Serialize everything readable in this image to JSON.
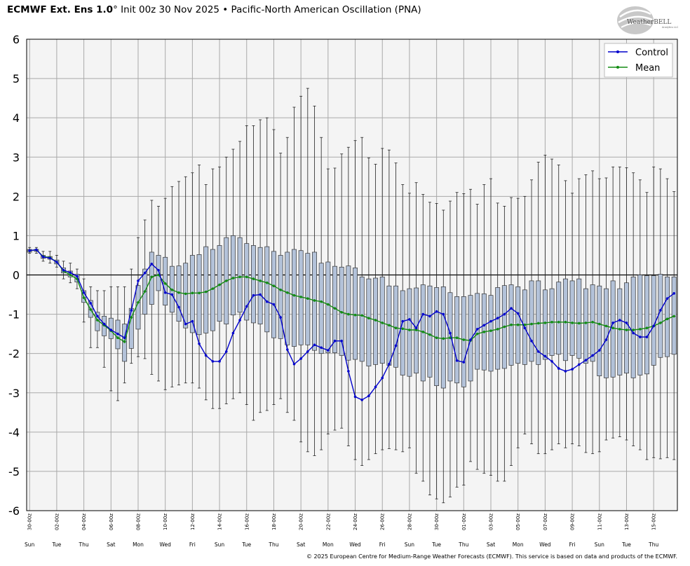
{
  "header": {
    "title_bold": "ECMWF Ext. Ens 1.0",
    "title_rest": "° Init 00z 30 Nov 2025 • Pacific-North American Oscillation (PNA)"
  },
  "logo": {
    "text": "WeatherBELL",
    "subtext": "Analytics LLC"
  },
  "footer": {
    "copyright": "© 2025 European Centre for Medium-Range Weather Forecasts (ECMWF). This service is based on data and products of the ECMWF."
  },
  "colors": {
    "control": "#0000cc",
    "mean": "#138c13",
    "box_fill": "#b3c2d9",
    "box_stroke": "#333333",
    "plot_bg": "#f4f4f4",
    "grid": "#a9a9a9"
  },
  "chart_data": {
    "type": "box",
    "title": "Pacific-North American Oscillation (PNA)",
    "ylim": [
      -6,
      6
    ],
    "yticks": [
      -6,
      -5,
      -4,
      -3,
      -2,
      -1,
      0,
      1,
      2,
      3,
      4,
      5,
      6
    ],
    "grid": true,
    "legend": {
      "position": "top-right",
      "entries": [
        "Control",
        "Mean"
      ]
    },
    "x_date_labels": [
      "30-00z",
      "02-00z",
      "04-00z",
      "06-00z",
      "08-00z",
      "10-00z",
      "12-00z",
      "14-00z",
      "16-00z",
      "18-00z",
      "20-00z",
      "22-00z",
      "24-00z",
      "26-00z",
      "28-00z",
      "30-00z",
      "01-00z",
      "03-00z",
      "05-00z",
      "07-00z",
      "09-00z",
      "11-00z",
      "13-00z",
      "15-00z"
    ],
    "x_day_labels": [
      "Sun",
      "Tue",
      "Thu",
      "Sat",
      "Mon",
      "Wed",
      "Fri",
      "Sun",
      "Tue",
      "Thu",
      "Sat",
      "Mon",
      "Wed",
      "Fri",
      "Sun",
      "Tue",
      "Thu",
      "Sat",
      "Mon",
      "Wed",
      "Fri",
      "Sun",
      "Tue",
      "Thu"
    ],
    "step_hours": 12,
    "series": [
      {
        "name": "Control",
        "values": [
          0.62,
          0.64,
          0.46,
          0.43,
          0.33,
          0.12,
          0.06,
          -0.03,
          -0.45,
          -0.72,
          -1.05,
          -1.25,
          -1.4,
          -1.5,
          -1.6,
          -0.9,
          -0.15,
          0.05,
          0.28,
          0.12,
          -0.45,
          -0.5,
          -0.82,
          -1.25,
          -1.18,
          -1.75,
          -2.05,
          -2.2,
          -2.2,
          -1.95,
          -1.48,
          -1.15,
          -0.8,
          -0.52,
          -0.5,
          -0.68,
          -0.75,
          -1.08,
          -1.9,
          -2.27,
          -2.13,
          -1.95,
          -1.78,
          -1.85,
          -1.92,
          -1.68,
          -1.68,
          -2.45,
          -3.1,
          -3.18,
          -3.08,
          -2.85,
          -2.62,
          -2.27,
          -1.8,
          -1.18,
          -1.13,
          -1.35,
          -1.0,
          -1.05,
          -0.93,
          -1.0,
          -1.48,
          -2.18,
          -2.22,
          -1.65,
          -1.38,
          -1.28,
          -1.18,
          -1.1,
          -1.0,
          -0.85,
          -0.98,
          -1.35,
          -1.68,
          -1.95,
          -2.07,
          -2.2,
          -2.38,
          -2.45,
          -2.4,
          -2.28,
          -2.17,
          -2.05,
          -1.92,
          -1.65,
          -1.22,
          -1.15,
          -1.22,
          -1.48,
          -1.58,
          -1.58,
          -1.3,
          -0.9,
          -0.6,
          -0.47
        ]
      },
      {
        "name": "Mean",
        "values": [
          0.62,
          0.64,
          0.47,
          0.44,
          0.33,
          0.1,
          0.0,
          -0.1,
          -0.58,
          -0.88,
          -1.15,
          -1.28,
          -1.42,
          -1.6,
          -1.7,
          -1.08,
          -0.7,
          -0.42,
          -0.05,
          0.0,
          -0.22,
          -0.38,
          -0.45,
          -0.48,
          -0.46,
          -0.46,
          -0.43,
          -0.35,
          -0.25,
          -0.15,
          -0.08,
          -0.05,
          -0.05,
          -0.1,
          -0.15,
          -0.2,
          -0.28,
          -0.38,
          -0.45,
          -0.52,
          -0.56,
          -0.6,
          -0.65,
          -0.68,
          -0.75,
          -0.85,
          -0.95,
          -1.0,
          -1.02,
          -1.03,
          -1.1,
          -1.15,
          -1.22,
          -1.28,
          -1.35,
          -1.37,
          -1.4,
          -1.4,
          -1.45,
          -1.52,
          -1.6,
          -1.62,
          -1.6,
          -1.6,
          -1.65,
          -1.67,
          -1.5,
          -1.45,
          -1.42,
          -1.38,
          -1.32,
          -1.27,
          -1.27,
          -1.27,
          -1.25,
          -1.23,
          -1.22,
          -1.2,
          -1.2,
          -1.2,
          -1.22,
          -1.23,
          -1.22,
          -1.2,
          -1.25,
          -1.3,
          -1.35,
          -1.38,
          -1.4,
          -1.4,
          -1.38,
          -1.35,
          -1.3,
          -1.22,
          -1.12,
          -1.05
        ]
      }
    ],
    "whisker_max": [
      0.7,
      0.7,
      0.6,
      0.6,
      0.5,
      0.35,
      0.3,
      0.15,
      -0.1,
      -0.3,
      -0.4,
      -0.4,
      -0.3,
      -0.3,
      -0.3,
      0.15,
      0.95,
      1.4,
      1.9,
      1.75,
      1.95,
      2.25,
      2.38,
      2.5,
      2.6,
      2.8,
      2.3,
      2.7,
      2.75,
      3.0,
      3.2,
      3.4,
      3.8,
      3.8,
      3.95,
      4.0,
      3.7,
      3.1,
      3.5,
      4.27,
      4.55,
      4.75,
      4.3,
      3.5,
      2.7,
      2.72,
      3.08,
      3.25,
      3.42,
      3.5,
      2.98,
      2.82,
      3.22,
      3.18,
      2.85,
      2.3,
      2.08,
      2.35,
      2.05,
      1.85,
      1.82,
      1.65,
      1.88,
      2.1,
      2.07,
      2.18,
      1.8,
      2.3,
      2.45,
      1.83,
      1.75,
      1.97,
      1.95,
      2.0,
      2.42,
      2.87,
      3.05,
      2.95,
      2.8,
      2.4,
      2.08,
      2.45,
      2.55,
      2.65,
      2.45,
      2.47,
      2.75,
      2.75,
      2.73,
      2.6,
      2.42,
      2.1,
      2.75,
      2.7,
      2.45,
      2.12
    ],
    "q3": [
      0.65,
      0.65,
      0.5,
      0.47,
      0.38,
      0.18,
      0.1,
      0.02,
      -0.4,
      -0.65,
      -0.95,
      -1.05,
      -1.1,
      -1.15,
      -1.25,
      -0.85,
      -0.27,
      0.15,
      0.58,
      0.5,
      0.45,
      0.22,
      0.23,
      0.3,
      0.5,
      0.52,
      0.72,
      0.65,
      0.75,
      0.95,
      1.0,
      0.95,
      0.8,
      0.75,
      0.7,
      0.72,
      0.6,
      0.5,
      0.58,
      0.65,
      0.62,
      0.55,
      0.58,
      0.3,
      0.33,
      0.22,
      0.2,
      0.23,
      0.18,
      -0.05,
      -0.1,
      -0.08,
      -0.05,
      -0.28,
      -0.28,
      -0.4,
      -0.35,
      -0.33,
      -0.25,
      -0.28,
      -0.32,
      -0.3,
      -0.45,
      -0.55,
      -0.55,
      -0.52,
      -0.47,
      -0.48,
      -0.52,
      -0.32,
      -0.27,
      -0.25,
      -0.3,
      -0.38,
      -0.15,
      -0.15,
      -0.38,
      -0.35,
      -0.18,
      -0.1,
      -0.15,
      -0.1,
      -0.35,
      -0.25,
      -0.28,
      -0.35,
      -0.15,
      -0.35,
      -0.2,
      -0.05,
      0.0,
      -0.02,
      -0.02,
      0.02,
      -0.05,
      -0.05
    ],
    "q1": [
      0.58,
      0.6,
      0.42,
      0.4,
      0.28,
      0.05,
      -0.05,
      -0.18,
      -0.7,
      -1.08,
      -1.42,
      -1.55,
      -1.62,
      -1.88,
      -2.2,
      -1.87,
      -1.38,
      -1.0,
      -0.75,
      -0.4,
      -0.77,
      -0.95,
      -1.18,
      -1.35,
      -1.47,
      -1.52,
      -1.48,
      -1.42,
      -1.18,
      -1.25,
      -1.02,
      -0.95,
      -1.15,
      -1.22,
      -1.25,
      -1.45,
      -1.6,
      -1.62,
      -1.78,
      -1.82,
      -1.78,
      -1.78,
      -1.92,
      -2.0,
      -1.98,
      -1.98,
      -2.05,
      -2.17,
      -2.15,
      -2.2,
      -2.32,
      -2.28,
      -2.25,
      -2.3,
      -2.35,
      -2.55,
      -2.58,
      -2.5,
      -2.7,
      -2.6,
      -2.82,
      -2.88,
      -2.7,
      -2.75,
      -2.85,
      -2.7,
      -2.4,
      -2.42,
      -2.45,
      -2.4,
      -2.38,
      -2.3,
      -2.25,
      -2.28,
      -2.2,
      -2.28,
      -2.15,
      -2.05,
      -2.02,
      -2.18,
      -2.05,
      -2.12,
      -2.25,
      -2.2,
      -2.57,
      -2.62,
      -2.6,
      -2.55,
      -2.5,
      -2.62,
      -2.55,
      -2.52,
      -2.3,
      -2.1,
      -2.08,
      -2.02
    ],
    "whisker_min": [
      0.55,
      0.55,
      0.35,
      0.3,
      0.2,
      -0.1,
      -0.2,
      -0.35,
      -1.2,
      -1.85,
      -1.85,
      -2.35,
      -2.95,
      -3.2,
      -2.75,
      -2.25,
      -2.08,
      -2.13,
      -2.53,
      -2.7,
      -2.92,
      -2.85,
      -2.8,
      -2.75,
      -2.75,
      -2.88,
      -3.18,
      -3.4,
      -3.4,
      -3.28,
      -3.15,
      -3.0,
      -3.3,
      -3.7,
      -3.5,
      -3.45,
      -3.3,
      -3.15,
      -3.5,
      -3.7,
      -4.25,
      -4.5,
      -4.6,
      -4.45,
      -4.05,
      -3.95,
      -3.9,
      -4.35,
      -4.7,
      -4.85,
      -4.7,
      -4.55,
      -4.45,
      -4.42,
      -4.45,
      -4.5,
      -4.4,
      -5.05,
      -5.25,
      -5.6,
      -5.7,
      -5.8,
      -5.65,
      -5.4,
      -5.35,
      -4.75,
      -4.95,
      -5.05,
      -5.1,
      -5.25,
      -5.25,
      -4.85,
      -4.4,
      -4.05,
      -4.3,
      -4.55,
      -4.55,
      -4.45,
      -4.3,
      -4.4,
      -4.3,
      -4.35,
      -4.52,
      -4.55,
      -4.5,
      -4.2,
      -4.15,
      -4.12,
      -4.2,
      -4.35,
      -4.45,
      -4.7,
      -4.65,
      -4.68,
      -4.65,
      -4.7
    ]
  }
}
